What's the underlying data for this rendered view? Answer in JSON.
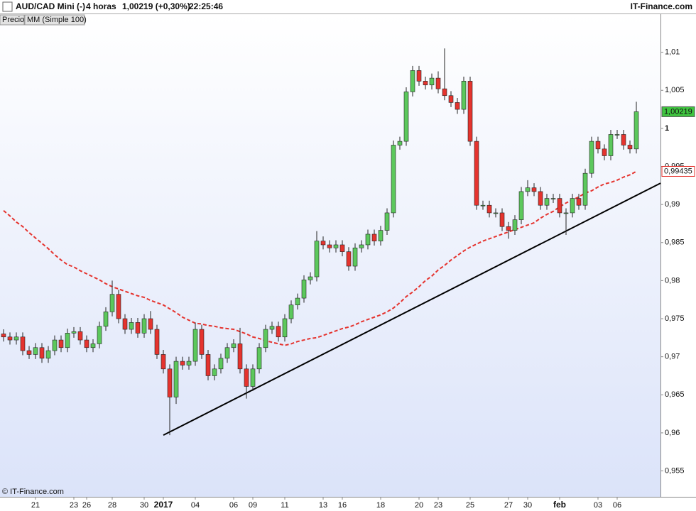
{
  "chart_data": {
    "type": "candlestick",
    "header": {
      "symbol": "AUD/CAD Mini (-)",
      "timeframe": "4 horas",
      "quote": "1,00219 (+0,30%)",
      "time": "22:25:46",
      "brand": "IT-Finance.com"
    },
    "credit": "© IT-Finance.com",
    "categories": [
      null,
      null,
      null,
      null,
      null,
      "21",
      null,
      null,
      null,
      null,
      null,
      "23",
      null,
      "26",
      null,
      null,
      null,
      "28",
      null,
      null,
      null,
      null,
      "30",
      null,
      null,
      "2017",
      null,
      null,
      null,
      null,
      "04",
      null,
      null,
      null,
      null,
      null,
      "06",
      null,
      null,
      "09",
      null,
      null,
      null,
      null,
      "11",
      null,
      null,
      null,
      null,
      null,
      "13",
      null,
      null,
      "16",
      null,
      null,
      null,
      null,
      null,
      "18",
      null,
      null,
      null,
      null,
      null,
      "20",
      null,
      null,
      "23",
      null,
      null,
      null,
      null,
      "25",
      null,
      null,
      null,
      null,
      null,
      "27",
      null,
      null,
      "30",
      null,
      null,
      null,
      null,
      "feb",
      null,
      null,
      null,
      null,
      null,
      "03",
      null,
      null,
      "06",
      null,
      null,
      null
    ],
    "xtick_bold": [
      25,
      87
    ],
    "ylim": [
      0.9516,
      1.015
    ],
    "yticks": [
      {
        "value": 0.955,
        "label": "0,955"
      },
      {
        "value": 0.96,
        "label": "0,96"
      },
      {
        "value": 0.965,
        "label": "0,965"
      },
      {
        "value": 0.97,
        "label": "0,97"
      },
      {
        "value": 0.975,
        "label": "0,975"
      },
      {
        "value": 0.98,
        "label": "0,98"
      },
      {
        "value": 0.985,
        "label": "0,985"
      },
      {
        "value": 0.99,
        "label": "0,99"
      },
      {
        "value": 0.995,
        "label": "0,995"
      },
      1,
      {
        "value": 1.005,
        "label": "1,005"
      },
      {
        "value": 1.01,
        "label": "1,01"
      }
    ],
    "ytick_bold": [
      9
    ],
    "grid": false,
    "series": [
      {
        "name": "Precio",
        "type": "candlestick",
        "up_color": "#5cc85c",
        "down_color": "#e5332e",
        "last_color": "#3fc43f",
        "open": [
          0.973,
          0.9726,
          0.9722,
          0.9726,
          0.9708,
          0.9703,
          0.9712,
          0.9698,
          0.9708,
          0.9722,
          0.9712,
          0.9731,
          0.9733,
          0.9722,
          0.9712,
          0.9717,
          0.974,
          0.9759,
          0.9782,
          0.975,
          0.9736,
          0.9745,
          0.9731,
          0.975,
          0.9736,
          0.9703,
          0.9684,
          0.9647,
          0.9694,
          0.9689,
          0.9694,
          0.9736,
          0.9703,
          0.9675,
          0.9684,
          0.9698,
          0.9712,
          0.9717,
          0.9684,
          0.9661,
          0.9684,
          0.9712,
          0.9736,
          0.974,
          0.9726,
          0.975,
          0.9768,
          0.9777,
          0.9801,
          0.9805,
          0.9852,
          0.9847,
          0.9843,
          0.9847,
          0.9838,
          0.9819,
          0.9843,
          0.9847,
          0.9861,
          0.9852,
          0.9866,
          0.9889,
          0.9978,
          0.9983,
          1.0048,
          1.0076,
          1.0062,
          1.0057,
          1.0066,
          1.0052,
          1.0043,
          1.0034,
          1.0025,
          1.0062,
          0.9983,
          0.9899,
          0.9899,
          0.9889,
          0.9889,
          0.9871,
          0.9866,
          0.988,
          0.9917,
          0.9922,
          0.9917,
          0.9899,
          0.9908,
          0.9908,
          0.9889,
          0.9889,
          0.9908,
          0.9899,
          0.9941,
          0.9983,
          0.9973,
          0.9964,
          0.9992,
          0.9992,
          0.9978,
          0.9973
        ],
        "high": [
          0.9736,
          0.9732,
          0.9732,
          0.9732,
          0.9714,
          0.9718,
          0.9718,
          0.9714,
          0.9728,
          0.9728,
          0.9737,
          0.9739,
          0.9739,
          0.9728,
          0.9723,
          0.9746,
          0.9765,
          0.98,
          0.9788,
          0.9756,
          0.9751,
          0.9751,
          0.9756,
          0.976,
          0.9742,
          0.9709,
          0.969,
          0.97,
          0.97,
          0.97,
          0.9745,
          0.9742,
          0.9709,
          0.969,
          0.9704,
          0.9718,
          0.9723,
          0.9738,
          0.969,
          0.969,
          0.9718,
          0.9742,
          0.9746,
          0.9746,
          0.9756,
          0.9774,
          0.9783,
          0.9807,
          0.9811,
          0.9865,
          0.9858,
          0.9853,
          0.9853,
          0.9853,
          0.9844,
          0.9849,
          0.9853,
          0.9867,
          0.9867,
          0.9872,
          0.9895,
          0.9984,
          0.9989,
          1.0054,
          1.0082,
          1.0082,
          1.0068,
          1.0072,
          1.0075,
          1.0105,
          1.0049,
          1.004,
          1.0068,
          1.0068,
          0.9989,
          0.9905,
          0.9905,
          0.9895,
          0.9895,
          0.9877,
          0.9886,
          0.9923,
          0.9932,
          0.9928,
          0.9923,
          0.9914,
          0.9914,
          0.9914,
          0.9895,
          0.9914,
          0.9914,
          0.9947,
          0.9989,
          0.9989,
          0.9979,
          0.9998,
          0.9998,
          0.9998,
          0.9984,
          1.0035
        ],
        "low": [
          0.972,
          0.9716,
          0.9716,
          0.9702,
          0.9697,
          0.9697,
          0.9692,
          0.9692,
          0.9702,
          0.9706,
          0.9706,
          0.9725,
          0.9716,
          0.9706,
          0.9706,
          0.9711,
          0.9734,
          0.9753,
          0.9744,
          0.973,
          0.973,
          0.9725,
          0.9725,
          0.973,
          0.9697,
          0.9678,
          0.9597,
          0.9638,
          0.9683,
          0.9683,
          0.9688,
          0.9697,
          0.9669,
          0.9669,
          0.9678,
          0.9692,
          0.9706,
          0.9678,
          0.9645,
          0.9655,
          0.9678,
          0.9706,
          0.973,
          0.972,
          0.972,
          0.9744,
          0.9762,
          0.9771,
          0.9795,
          0.9799,
          0.9841,
          0.9837,
          0.9837,
          0.9832,
          0.9813,
          0.9813,
          0.9837,
          0.9841,
          0.9846,
          0.9846,
          0.986,
          0.9883,
          0.9972,
          0.9977,
          1.0042,
          1.0056,
          1.0051,
          1.0051,
          1.0046,
          1.0037,
          1.0028,
          1.0019,
          1.0019,
          0.9977,
          0.9893,
          0.9893,
          0.9883,
          0.9883,
          0.9865,
          0.9855,
          0.986,
          0.9874,
          0.9911,
          0.9911,
          0.9893,
          0.9893,
          0.9902,
          0.9883,
          0.986,
          0.9883,
          0.9893,
          0.9893,
          0.9935,
          0.9967,
          0.9958,
          0.9958,
          0.9986,
          0.9972,
          0.9967,
          0.9967
        ],
        "close": [
          0.9726,
          0.9722,
          0.9726,
          0.9708,
          0.9703,
          0.9712,
          0.9698,
          0.9708,
          0.9722,
          0.9712,
          0.9731,
          0.9733,
          0.9722,
          0.9712,
          0.9717,
          0.974,
          0.9759,
          0.9782,
          0.975,
          0.9736,
          0.9745,
          0.9731,
          0.975,
          0.9736,
          0.9703,
          0.9684,
          0.9647,
          0.9694,
          0.9689,
          0.9694,
          0.9736,
          0.9703,
          0.9675,
          0.9684,
          0.9698,
          0.9712,
          0.9717,
          0.9684,
          0.9661,
          0.9684,
          0.9712,
          0.9736,
          0.974,
          0.9726,
          0.975,
          0.9768,
          0.9777,
          0.9801,
          0.9805,
          0.9852,
          0.9847,
          0.9843,
          0.9847,
          0.9838,
          0.9819,
          0.9843,
          0.9847,
          0.9861,
          0.9852,
          0.9866,
          0.9889,
          0.9978,
          0.9983,
          1.0048,
          1.0076,
          1.0062,
          1.0057,
          1.0066,
          1.0052,
          1.0043,
          1.0034,
          1.0025,
          1.0062,
          0.9983,
          0.9899,
          0.9899,
          0.9889,
          0.9889,
          0.9871,
          0.9866,
          0.988,
          0.9917,
          0.9922,
          0.9917,
          0.9899,
          0.9908,
          0.9908,
          0.9889,
          0.9889,
          0.9908,
          0.9899,
          0.9941,
          0.9983,
          0.9973,
          0.9964,
          0.9992,
          0.9992,
          0.9978,
          0.9973,
          1.00219
        ],
        "last_label": "1,00219"
      },
      {
        "name": "MM (Simple 100)",
        "type": "line",
        "color": "#e5332e",
        "dashed": true,
        "values": [
          0.9892,
          0.9885,
          0.9877,
          0.9871,
          0.9863,
          0.9856,
          0.9849,
          0.9842,
          0.9834,
          0.9827,
          0.9821,
          0.9818,
          0.9813,
          0.9809,
          0.9805,
          0.9801,
          0.9796,
          0.9792,
          0.9789,
          0.9786,
          0.9783,
          0.978,
          0.9778,
          0.9774,
          0.9771,
          0.9768,
          0.9763,
          0.9758,
          0.9752,
          0.9748,
          0.9744,
          0.9743,
          0.9741,
          0.974,
          0.9738,
          0.9737,
          0.9736,
          0.9733,
          0.973,
          0.9726,
          0.9724,
          0.9721,
          0.9719,
          0.9717,
          0.9715,
          0.9717,
          0.972,
          0.9722,
          0.9724,
          0.9725,
          0.9728,
          0.9731,
          0.9734,
          0.9737,
          0.9739,
          0.9742,
          0.9746,
          0.9749,
          0.9752,
          0.9755,
          0.9759,
          0.9764,
          0.9771,
          0.9779,
          0.9785,
          0.9792,
          0.98,
          0.9806,
          0.9814,
          0.982,
          0.9827,
          0.9833,
          0.9839,
          0.9844,
          0.9848,
          0.9852,
          0.9855,
          0.9858,
          0.9861,
          0.9864,
          0.9867,
          0.987,
          0.9873,
          0.9876,
          0.9882,
          0.9887,
          0.9891,
          0.9897,
          0.9902,
          0.9906,
          0.991,
          0.9915,
          0.9918,
          0.9923,
          0.9927,
          0.9929,
          0.9932,
          0.9936,
          0.9939,
          0.99435
        ],
        "last_label": "0,99435"
      }
    ],
    "trendline": [
      {
        "index": 25,
        "value": 0.9597
      },
      {
        "index": 103,
        "value": 0.9928
      }
    ],
    "trendline_color": "#000000"
  }
}
